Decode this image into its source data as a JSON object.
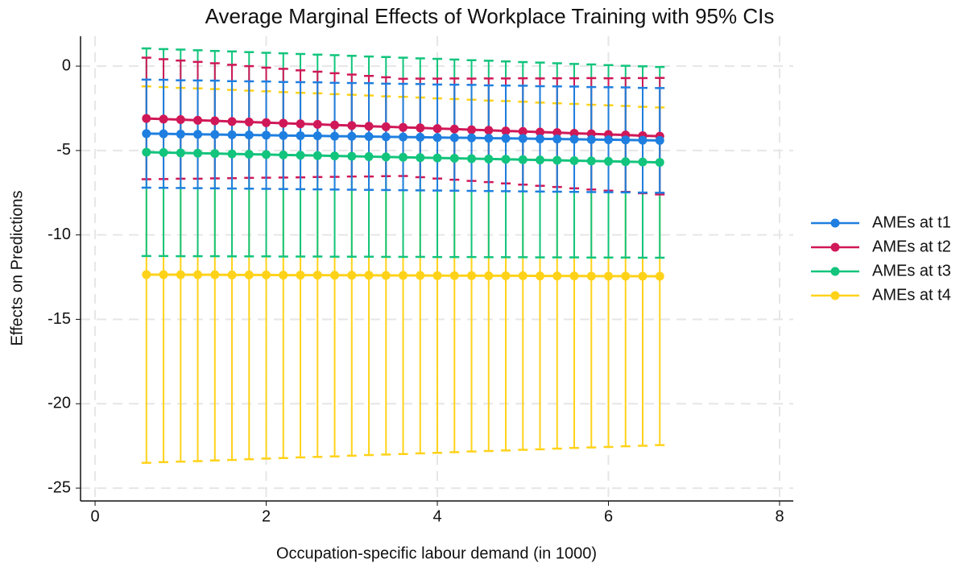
{
  "chart_data": {
    "type": "line",
    "title": "Average Marginal Effects of Workplace Training with 95% CIs",
    "x_label": "Occupation-specific labour demand (in 1000)",
    "y_label": "Effects on Predictions",
    "x": [
      0.6,
      0.8,
      1.0,
      1.2,
      1.4,
      1.6,
      1.8,
      2.0,
      2.2,
      2.4,
      2.6,
      2.8,
      3.0,
      3.2,
      3.4,
      3.6,
      3.8,
      4.0,
      4.2,
      4.4,
      4.6,
      4.8,
      5.0,
      5.2,
      5.4,
      5.6,
      5.8,
      6.0,
      6.2,
      6.4,
      6.6
    ],
    "series": [
      {
        "name": "AMEs at t1",
        "color": "#1f7fe0",
        "values": [
          -4.0,
          -4.01,
          -4.03,
          -4.04,
          -4.05,
          -4.07,
          -4.08,
          -4.09,
          -4.11,
          -4.12,
          -4.13,
          -4.15,
          -4.16,
          -4.17,
          -4.19,
          -4.2,
          -4.21,
          -4.23,
          -4.24,
          -4.25,
          -4.27,
          -4.28,
          -4.29,
          -4.31,
          -4.32,
          -4.33,
          -4.35,
          -4.36,
          -4.37,
          -4.39,
          -4.4
        ],
        "errors": [
          3.2,
          3.2,
          3.19,
          3.19,
          3.19,
          3.18,
          3.18,
          3.18,
          3.17,
          3.17,
          3.17,
          3.16,
          3.16,
          3.16,
          3.15,
          3.15,
          3.15,
          3.14,
          3.14,
          3.14,
          3.13,
          3.13,
          3.13,
          3.12,
          3.12,
          3.12,
          3.11,
          3.11,
          3.11,
          3.1,
          3.1
        ]
      },
      {
        "name": "AMEs at t2",
        "color": "#d01858",
        "values": [
          -3.1,
          -3.14,
          -3.17,
          -3.21,
          -3.24,
          -3.28,
          -3.31,
          -3.35,
          -3.38,
          -3.42,
          -3.45,
          -3.49,
          -3.52,
          -3.56,
          -3.59,
          -3.63,
          -3.66,
          -3.7,
          -3.73,
          -3.77,
          -3.8,
          -3.84,
          -3.87,
          -3.91,
          -3.94,
          -3.98,
          -4.01,
          -4.05,
          -4.08,
          -4.12,
          -4.15
        ],
        "errors": [
          3.6,
          3.55,
          3.5,
          3.46,
          3.41,
          3.36,
          3.31,
          3.26,
          3.22,
          3.17,
          3.12,
          3.07,
          3.02,
          2.98,
          2.93,
          2.88,
          2.92,
          2.96,
          3.0,
          3.03,
          3.07,
          3.11,
          3.15,
          3.18,
          3.22,
          3.26,
          3.3,
          3.33,
          3.37,
          3.41,
          3.45
        ]
      },
      {
        "name": "AMEs at t3",
        "color": "#12c47c",
        "values": [
          -5.1,
          -5.12,
          -5.14,
          -5.16,
          -5.18,
          -5.2,
          -5.22,
          -5.24,
          -5.26,
          -5.28,
          -5.3,
          -5.32,
          -5.34,
          -5.36,
          -5.38,
          -5.4,
          -5.42,
          -5.44,
          -5.46,
          -5.48,
          -5.5,
          -5.52,
          -5.54,
          -5.56,
          -5.58,
          -5.6,
          -5.62,
          -5.64,
          -5.66,
          -5.68,
          -5.7
        ],
        "errors": [
          6.15,
          6.13,
          6.12,
          6.1,
          6.08,
          6.07,
          6.05,
          6.03,
          6.02,
          6.0,
          5.98,
          5.97,
          5.95,
          5.93,
          5.92,
          5.9,
          5.88,
          5.87,
          5.85,
          5.83,
          5.82,
          5.8,
          5.78,
          5.77,
          5.75,
          5.73,
          5.72,
          5.7,
          5.68,
          5.67,
          5.65
        ]
      },
      {
        "name": "AMEs at t4",
        "color": "#ffd21a",
        "values": [
          -12.35,
          -12.35,
          -12.36,
          -12.36,
          -12.36,
          -12.37,
          -12.37,
          -12.37,
          -12.38,
          -12.38,
          -12.38,
          -12.39,
          -12.39,
          -12.39,
          -12.4,
          -12.4,
          -12.4,
          -12.41,
          -12.41,
          -12.41,
          -12.42,
          -12.42,
          -12.42,
          -12.43,
          -12.43,
          -12.43,
          -12.44,
          -12.44,
          -12.44,
          -12.45,
          -12.45
        ],
        "errors": [
          11.15,
          11.11,
          11.07,
          11.04,
          11.0,
          10.96,
          10.92,
          10.88,
          10.84,
          10.8,
          10.77,
          10.73,
          10.69,
          10.65,
          10.61,
          10.58,
          10.54,
          10.5,
          10.46,
          10.42,
          10.38,
          10.35,
          10.31,
          10.27,
          10.23,
          10.19,
          10.15,
          10.12,
          10.08,
          10.04,
          10.0
        ]
      }
    ],
    "xlim": [
      -0.17,
      8.16
    ],
    "xticks": [
      0,
      2,
      4,
      6,
      8
    ],
    "ylim": [
      -25.76,
      1.77
    ],
    "yticks": [
      0,
      -5,
      -10,
      -15,
      -20,
      -25
    ],
    "grid": true,
    "legend": "right"
  }
}
